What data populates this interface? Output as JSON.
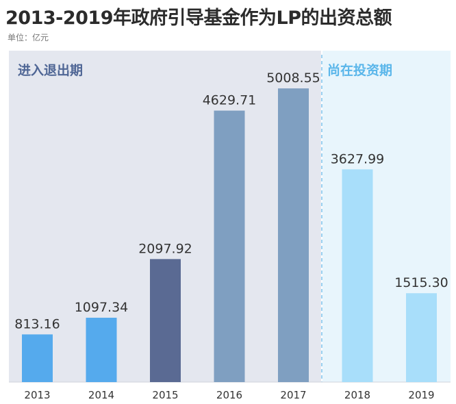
{
  "header": {
    "title": "2013-2019年政府引导基金作为LP的出资总额",
    "unit": "单位：亿元"
  },
  "phases": [
    {
      "label": "进入退出期",
      "color": "#4f6695"
    },
    {
      "label": "尚在投资期",
      "color": "#5ab6ea"
    }
  ],
  "chart_data": {
    "type": "bar",
    "title": "2013-2019年政府引导基金作为LP的出资总额",
    "ylabel": "单位：亿元",
    "xlabel": "",
    "categories": [
      "2013",
      "2014",
      "2015",
      "2016",
      "2017",
      "2018",
      "2019"
    ],
    "values": [
      813.16,
      1097.34,
      2097.92,
      4629.71,
      5008.55,
      3627.99,
      1515.3
    ],
    "value_labels": [
      "813.16",
      "1097.34",
      "2097.92",
      "4629.71",
      "5008.55",
      "3627.99",
      "1515.30"
    ],
    "bar_colors": [
      "#55aaed",
      "#55aaed",
      "#5a6a93",
      "#7f9fc1",
      "#7f9fc1",
      "#a8defa",
      "#a8defa"
    ],
    "ylim": [
      0,
      5500
    ],
    "grid": false,
    "legend": "none"
  }
}
